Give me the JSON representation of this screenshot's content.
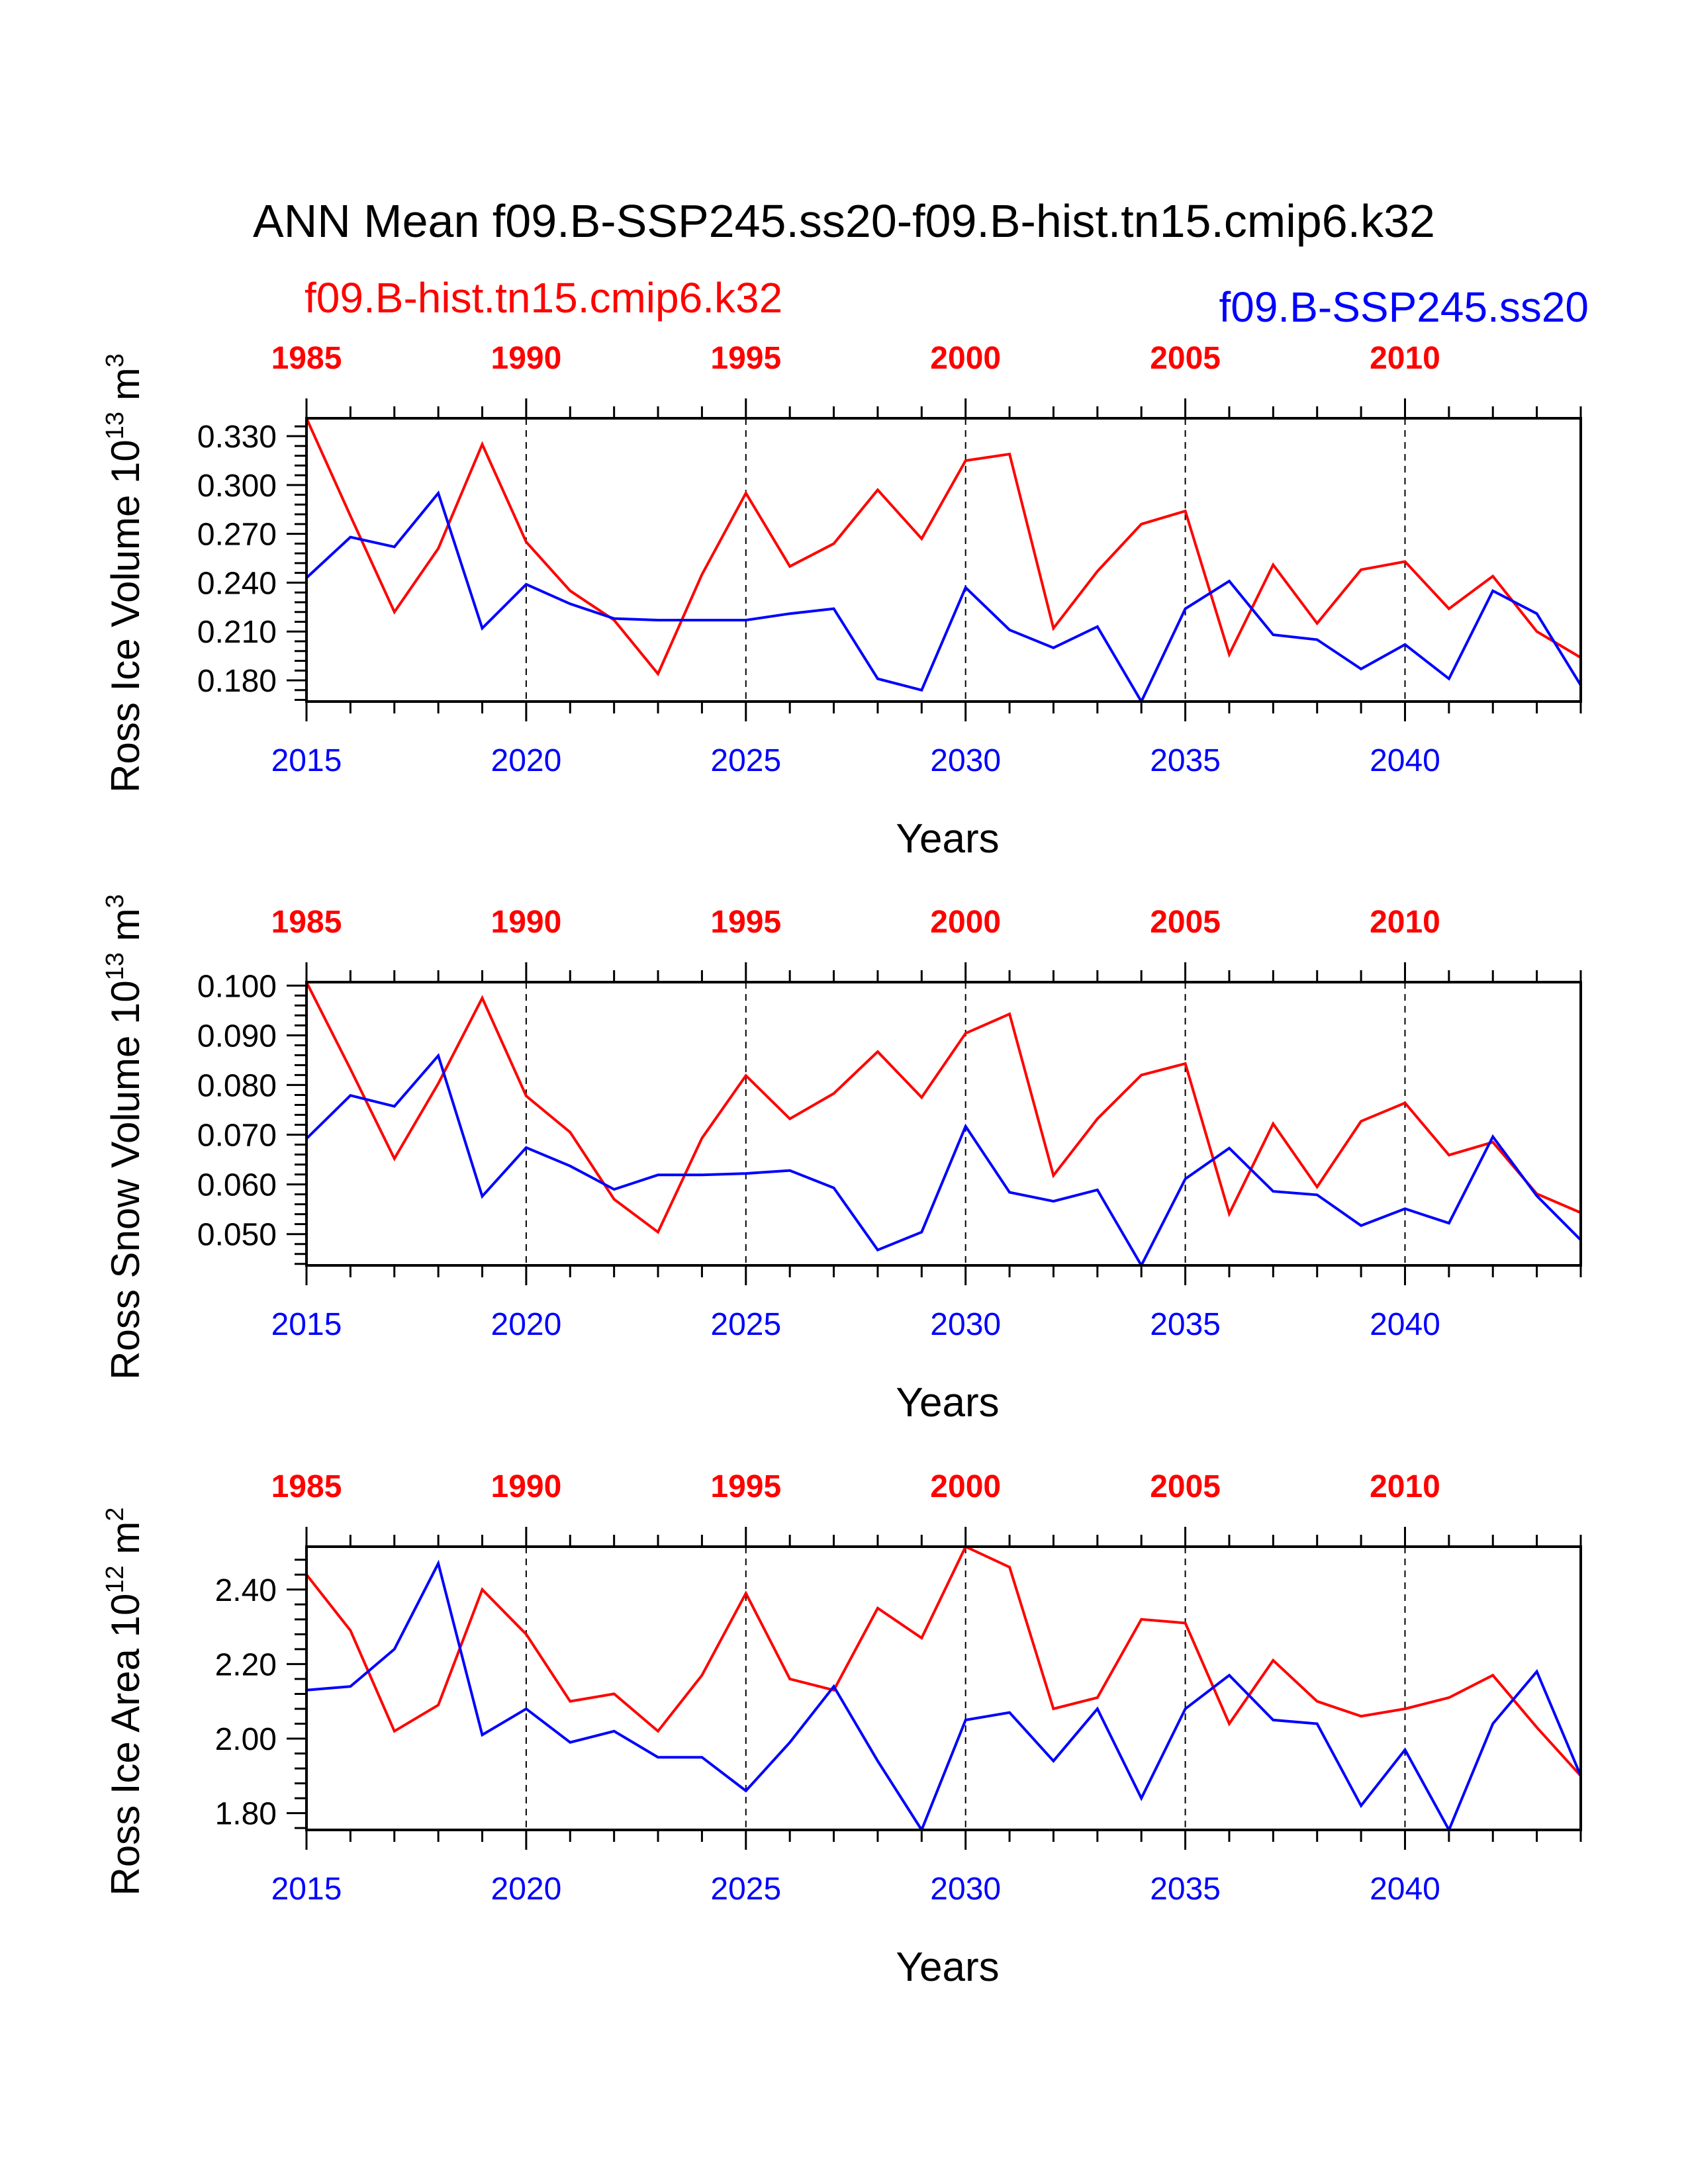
{
  "title": "ANN Mean f09.B-SSP245.ss20-f09.B-hist.tn15.cmip6.k32",
  "cases": {
    "hist": {
      "name": "f09.B-hist.tn15.cmip6.k32",
      "color": "#ff0000"
    },
    "ssp": {
      "name": "f09.B-SSP245.ss20",
      "color": "#0000ff"
    }
  },
  "chart_data": [
    {
      "type": "line",
      "ylabel": "Ross Ice Volume 10",
      "ylabel_exp": "13",
      "ylabel_unit": "m",
      "ylabel_unit_exp": "3",
      "xlabel": "Years",
      "x_bottom": [
        2015,
        2016,
        2017,
        2018,
        2019,
        2020,
        2021,
        2022,
        2023,
        2024,
        2025,
        2026,
        2027,
        2028,
        2029,
        2030,
        2031,
        2032,
        2033,
        2034,
        2035,
        2036,
        2037,
        2038,
        2039,
        2040,
        2041,
        2042,
        2043,
        2044
      ],
      "x_top": [
        1985,
        1986,
        1987,
        1988,
        1989,
        1990,
        1991,
        1992,
        1993,
        1994,
        1995,
        1996,
        1997,
        1998,
        1999,
        2000,
        2001,
        2002,
        2003,
        2004,
        2005,
        2006,
        2007,
        2008,
        2009,
        2010,
        2011,
        2012,
        2013,
        2014
      ],
      "bottom_tick_labels": [
        "2015",
        "2020",
        "2025",
        "2030",
        "2035",
        "2040"
      ],
      "top_tick_labels": [
        "1985",
        "1990",
        "1995",
        "2000",
        "2005",
        "2010"
      ],
      "ylim": [
        0.167,
        0.341
      ],
      "yticks": [
        "0.180",
        "0.210",
        "0.240",
        "0.270",
        "0.300",
        "0.330"
      ],
      "series": [
        {
          "name": "f09.B-hist.tn15.cmip6.k32",
          "color": "#ff0000",
          "values": [
            0.341,
            0.281,
            0.222,
            0.261,
            0.325,
            0.265,
            0.235,
            0.217,
            0.184,
            0.245,
            0.295,
            0.25,
            0.264,
            0.297,
            0.267,
            0.315,
            0.319,
            0.212,
            0.247,
            0.276,
            0.284,
            0.196,
            0.251,
            0.215,
            0.248,
            0.253,
            0.224,
            0.244,
            0.21,
            0.194
          ]
        },
        {
          "name": "f09.B-SSP245.ss20",
          "color": "#0000ff",
          "values": [
            0.243,
            0.268,
            0.262,
            0.295,
            0.212,
            0.239,
            0.227,
            0.218,
            0.217,
            0.217,
            0.217,
            0.221,
            0.224,
            0.181,
            0.174,
            0.237,
            0.211,
            0.2,
            0.213,
            0.167,
            0.224,
            0.241,
            0.208,
            0.205,
            0.187,
            0.202,
            0.181,
            0.235,
            0.221,
            0.177
          ]
        }
      ]
    },
    {
      "type": "line",
      "ylabel": "Ross Snow Volume 10",
      "ylabel_exp": "13",
      "ylabel_unit": "m",
      "ylabel_unit_exp": "3",
      "xlabel": "Years",
      "bottom_tick_labels": [
        "2015",
        "2020",
        "2025",
        "2030",
        "2035",
        "2040"
      ],
      "top_tick_labels": [
        "1985",
        "1990",
        "1995",
        "2000",
        "2005",
        "2010"
      ],
      "ylim": [
        0.0437,
        0.1007
      ],
      "yticks": [
        "0.050",
        "0.060",
        "0.070",
        "0.080",
        "0.090",
        "0.100"
      ],
      "series": [
        {
          "name": "f09.B-hist.tn15.cmip6.k32",
          "color": "#ff0000",
          "values": [
            0.1007,
            0.0832,
            0.0652,
            0.0803,
            0.0975,
            0.0778,
            0.0705,
            0.057,
            0.0504,
            0.0693,
            0.0819,
            0.0732,
            0.0783,
            0.0867,
            0.0775,
            0.0904,
            0.0943,
            0.0618,
            0.0732,
            0.082,
            0.0843,
            0.0541,
            0.0722,
            0.0595,
            0.0727,
            0.0764,
            0.0659,
            0.0685,
            0.0581,
            0.0543
          ]
        },
        {
          "name": "f09.B-SSP245.ss20",
          "color": "#0000ff",
          "values": [
            0.0692,
            0.0779,
            0.0757,
            0.0859,
            0.0576,
            0.0674,
            0.0637,
            0.059,
            0.0619,
            0.0619,
            0.0622,
            0.0628,
            0.0593,
            0.0468,
            0.0504,
            0.0717,
            0.0584,
            0.0566,
            0.0589,
            0.0437,
            0.0611,
            0.0673,
            0.0586,
            0.0579,
            0.0517,
            0.0551,
            0.0522,
            0.0696,
            0.0577,
            0.0488
          ]
        }
      ]
    },
    {
      "type": "line",
      "ylabel": "Ross Ice Area 10",
      "ylabel_exp": "12",
      "ylabel_unit": "m",
      "ylabel_unit_exp": "2",
      "xlabel": "Years",
      "bottom_tick_labels": [
        "2015",
        "2020",
        "2025",
        "2030",
        "2035",
        "2040"
      ],
      "top_tick_labels": [
        "1985",
        "1990",
        "1995",
        "2000",
        "2005",
        "2010"
      ],
      "ylim": [
        1.755,
        2.515
      ],
      "yticks": [
        "1.80",
        "2.00",
        "2.20",
        "2.40"
      ],
      "series": [
        {
          "name": "f09.B-hist.tn15.cmip6.k32",
          "color": "#ff0000",
          "values": [
            2.44,
            2.29,
            2.02,
            2.09,
            2.4,
            2.28,
            2.1,
            2.12,
            2.02,
            2.17,
            2.39,
            2.16,
            2.13,
            2.35,
            2.27,
            2.515,
            2.46,
            2.08,
            2.11,
            2.32,
            2.31,
            2.04,
            2.21,
            2.1,
            2.06,
            2.08,
            2.11,
            2.17,
            2.03,
            1.9
          ]
        },
        {
          "name": "f09.B-SSP245.ss20",
          "color": "#0000ff",
          "values": [
            2.13,
            2.14,
            2.24,
            2.47,
            2.01,
            2.08,
            1.99,
            2.02,
            1.95,
            1.95,
            1.86,
            1.99,
            2.14,
            1.94,
            1.755,
            2.05,
            2.07,
            1.94,
            2.08,
            1.84,
            2.08,
            2.17,
            2.05,
            2.04,
            1.82,
            1.97,
            1.755,
            2.04,
            2.18,
            1.9
          ]
        }
      ]
    }
  ]
}
